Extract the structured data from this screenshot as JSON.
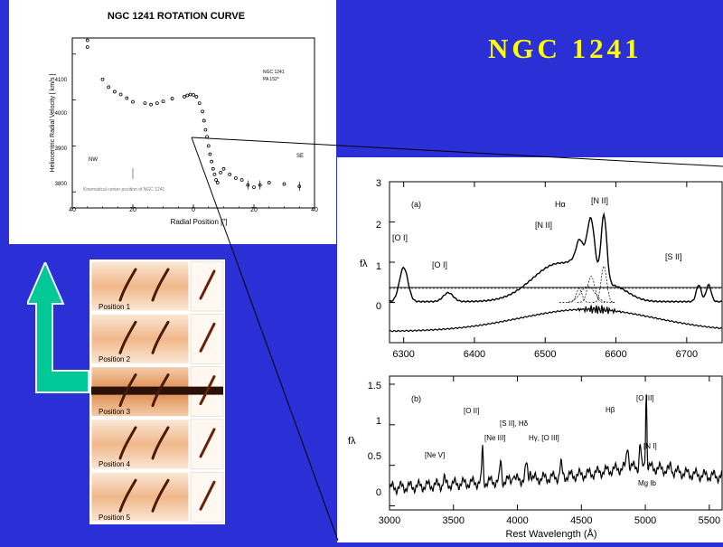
{
  "slide": {
    "title": "NGC 1241",
    "colors": {
      "background": "#2b2fd6",
      "title": "#ffff00",
      "arrow": "#00c896"
    }
  },
  "rotation_curve": {
    "title": "NGC 1241 ROTATION CURVE",
    "ylabel": "Heliocentric Radial Velocity  [ km/s ]",
    "xlabel": "Radial Position  [\"]",
    "x_ticks": [
      "40",
      "20",
      "0",
      "20",
      "40"
    ],
    "y_ticks": [
      "4100",
      "4000",
      "3900",
      "3800"
    ],
    "label_nw": "NW",
    "label_se": "SE",
    "legend_lines": [
      "NGC 1241",
      "PA 152°"
    ],
    "note": "Kinematical center position of NGC 1241"
  },
  "slit_positions": {
    "labels": [
      "Position 1",
      "Position 2",
      "Position 3",
      "Position 4",
      "Position 5"
    ]
  },
  "chart_data": [
    {
      "type": "scatter",
      "title": "NGC 1241 ROTATION CURVE",
      "xlabel": "Radial Position [\"]",
      "ylabel": "Heliocentric Radial Velocity [km/s]",
      "xlim": [
        -40,
        40
      ],
      "ylim": [
        3765,
        4135
      ],
      "grid": false,
      "points": [
        [
          -35,
          4130
        ],
        [
          -35,
          4115
        ],
        [
          -30,
          4045
        ],
        [
          -28,
          4028
        ],
        [
          -26,
          4018
        ],
        [
          -24,
          4012
        ],
        [
          -22,
          4004
        ],
        [
          -20,
          3996
        ],
        [
          -16,
          3993
        ],
        [
          -14,
          3990
        ],
        [
          -12,
          3993
        ],
        [
          -10,
          3997
        ],
        [
          -7,
          4003
        ],
        [
          -3,
          4007
        ],
        [
          -2,
          4010
        ],
        [
          -1,
          4012
        ],
        [
          0,
          4011
        ],
        [
          1,
          4007
        ],
        [
          2,
          3993
        ],
        [
          3,
          3975
        ],
        [
          3.5,
          3955
        ],
        [
          4,
          3935
        ],
        [
          4.5,
          3920
        ],
        [
          5,
          3900
        ],
        [
          5.5,
          3882
        ],
        [
          6,
          3866
        ],
        [
          6.5,
          3850
        ],
        [
          7,
          3838
        ],
        [
          7.5,
          3826
        ],
        [
          8,
          3820
        ],
        [
          9,
          3842
        ],
        [
          10,
          3850
        ],
        [
          12,
          3838
        ],
        [
          14,
          3830
        ],
        [
          16,
          3826
        ],
        [
          18,
          3815
        ],
        [
          20,
          3810
        ],
        [
          22,
          3815
        ],
        [
          25,
          3820
        ],
        [
          30,
          3817
        ],
        [
          35,
          3812
        ]
      ]
    },
    {
      "type": "line",
      "panel": "(a)",
      "xlim": [
        6280,
        6750
      ],
      "ylim": [
        -0.9,
        3.1
      ],
      "x_ticks": [
        "6300",
        "6400",
        "6500",
        "6600",
        "6700"
      ],
      "y_ticks": [
        "3",
        "2",
        "1",
        "0"
      ],
      "ylabel": "fλ",
      "annotations": [
        "[O I]",
        "[O I]",
        "[N II]",
        "Hα",
        "[N II]",
        "[S II]"
      ]
    },
    {
      "type": "line",
      "panel": "(b)",
      "xlim": [
        3000,
        5600
      ],
      "ylim": [
        -0.05,
        1.6
      ],
      "x_ticks": [
        "3000",
        "3500",
        "4000",
        "4500",
        "5000",
        "5500"
      ],
      "y_ticks": [
        "1.5",
        "1",
        "0.5",
        "0"
      ],
      "xlabel": "Rest Wavelength (Å)",
      "ylabel": "fλ",
      "annotations": [
        "[Ne V]",
        "[O II]",
        "[Ne III]",
        "[S II], Hδ",
        "Hγ, [O III]",
        "Hβ",
        "[O III]",
        "[N I]",
        "Mg Ib"
      ]
    }
  ]
}
